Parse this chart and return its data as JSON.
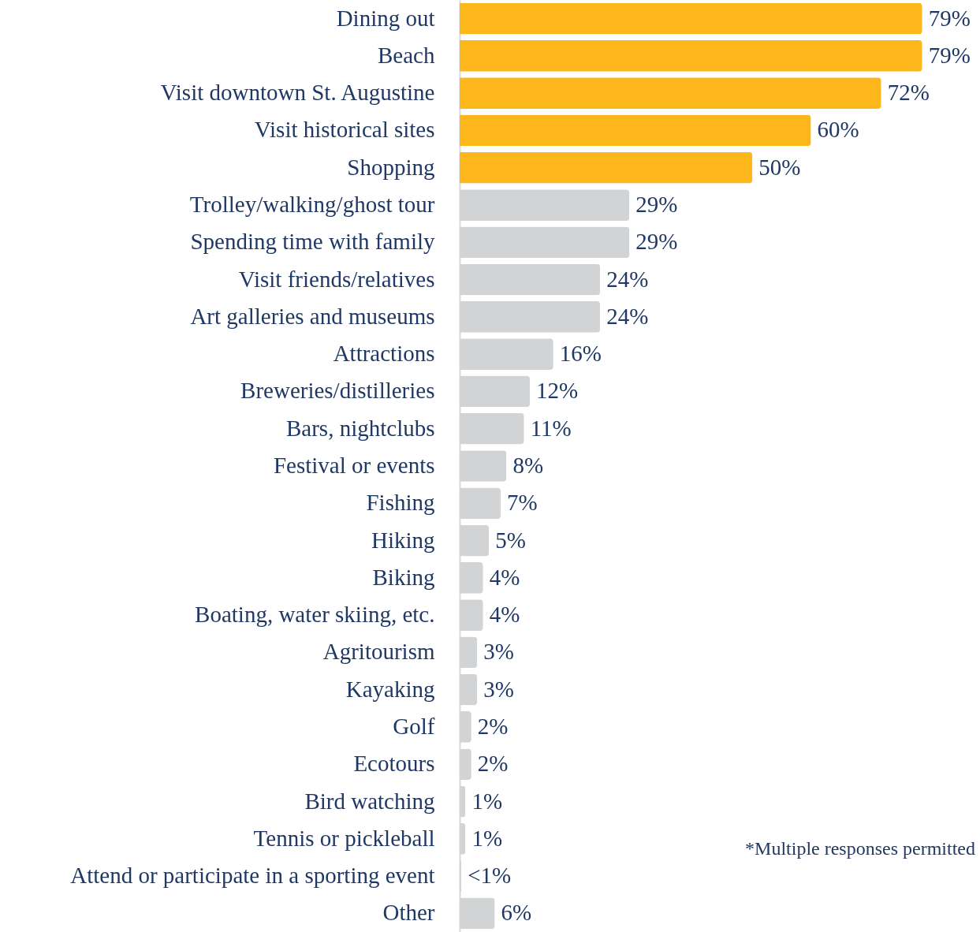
{
  "chart_data": {
    "type": "bar",
    "orientation": "horizontal",
    "categories": [
      "Dining out",
      "Beach",
      "Visit downtown St. Augustine",
      "Visit historical sites",
      "Shopping",
      "Trolley/walking/ghost tour",
      "Spending time with family",
      "Visit friends/relatives",
      "Art galleries and museums",
      "Attractions",
      "Breweries/distilleries",
      "Bars, nightclubs",
      "Festival or events",
      "Fishing",
      "Hiking",
      "Biking",
      "Boating, water skiing, etc.",
      "Agritourism",
      "Kayaking",
      "Golf",
      "Ecotours",
      "Bird watching",
      "Tennis or pickleball",
      "Attend or participate in a sporting event",
      "Other"
    ],
    "values": [
      79,
      79,
      72,
      60,
      50,
      29,
      29,
      24,
      24,
      16,
      12,
      11,
      8,
      7,
      5,
      4,
      4,
      3,
      3,
      2,
      2,
      1,
      1,
      0.3,
      6
    ],
    "value_labels": [
      "79%",
      "79%",
      "72%",
      "60%",
      "50%",
      "29%",
      "29%",
      "24%",
      "24%",
      "16%",
      "12%",
      "11%",
      "8%",
      "7%",
      "5%",
      "4%",
      "4%",
      "3%",
      "3%",
      "2%",
      "2%",
      "1%",
      "1%",
      "<1%",
      "6%"
    ],
    "colors": [
      "#fdb71b",
      "#fdb71b",
      "#fdb71b",
      "#fdb71b",
      "#fdb71b",
      "#d1d3d4",
      "#d1d3d4",
      "#d1d3d4",
      "#d1d3d4",
      "#d1d3d4",
      "#d1d3d4",
      "#d1d3d4",
      "#d1d3d4",
      "#d1d3d4",
      "#d1d3d4",
      "#d1d3d4",
      "#d1d3d4",
      "#d1d3d4",
      "#d1d3d4",
      "#d1d3d4",
      "#d1d3d4",
      "#d1d3d4",
      "#d1d3d4",
      "#d1d3d4",
      "#d1d3d4"
    ],
    "annotations": [
      "*Multiple responses permitted"
    ]
  }
}
